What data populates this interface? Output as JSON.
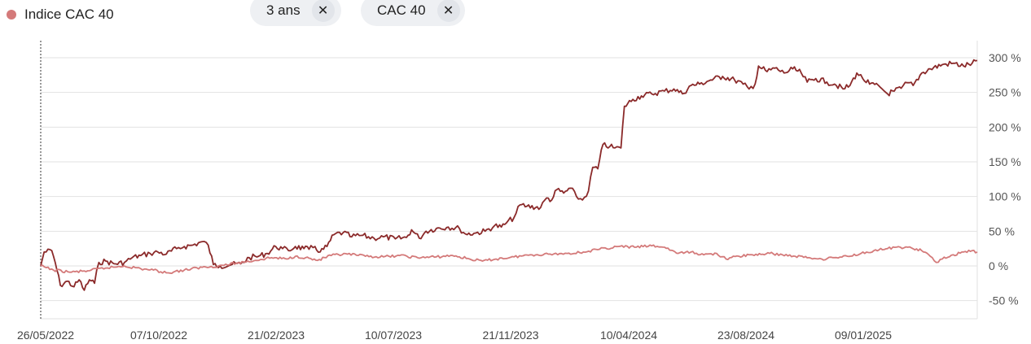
{
  "legend": {
    "label": "Indice CAC 40",
    "color": "#d47a7a"
  },
  "chips": [
    {
      "label": "3 ans",
      "close": "✕"
    },
    {
      "label": "CAC 40",
      "close": "✕"
    }
  ],
  "chart_data": {
    "type": "line",
    "x_tick_labels": [
      "26/05/2022",
      "07/10/2022",
      "21/02/2023",
      "10/07/2023",
      "21/11/2023",
      "10/04/2024",
      "23/08/2024",
      "09/01/2025"
    ],
    "y_tick_labels": [
      "300 %",
      "250 %",
      "200 %",
      "150 %",
      "100 %",
      "50 %",
      "0 %",
      "-50 %"
    ],
    "y_ticks": [
      300,
      250,
      200,
      150,
      100,
      50,
      0,
      -50
    ],
    "ylim": [
      -75,
      315
    ],
    "xlim": [
      "2022-05-26",
      "2025-05-26"
    ],
    "grid": true,
    "legend_position": "top-left",
    "series": [
      {
        "color": "#8b2a2a",
        "points": [
          [
            "2022-05-26",
            0
          ],
          [
            "2022-05-30",
            20
          ],
          [
            "2022-06-08",
            22
          ],
          [
            "2022-06-12",
            5
          ],
          [
            "2022-06-18",
            -28
          ],
          [
            "2022-06-26",
            -22
          ],
          [
            "2022-07-04",
            -30
          ],
          [
            "2022-07-10",
            -20
          ],
          [
            "2022-07-16",
            -35
          ],
          [
            "2022-07-22",
            -20
          ],
          [
            "2022-07-28",
            -25
          ],
          [
            "2022-08-02",
            5
          ],
          [
            "2022-08-10",
            7
          ],
          [
            "2022-08-20",
            3
          ],
          [
            "2022-09-01",
            5
          ],
          [
            "2022-09-10",
            12
          ],
          [
            "2022-09-20",
            15
          ],
          [
            "2022-10-01",
            18
          ],
          [
            "2022-10-10",
            20
          ],
          [
            "2022-10-20",
            17
          ],
          [
            "2022-11-01",
            25
          ],
          [
            "2022-11-10",
            28
          ],
          [
            "2022-11-20",
            30
          ],
          [
            "2022-12-01",
            35
          ],
          [
            "2022-12-08",
            30
          ],
          [
            "2022-12-14",
            2
          ],
          [
            "2022-12-22",
            0
          ],
          [
            "2023-01-05",
            2
          ],
          [
            "2023-01-15",
            3
          ],
          [
            "2023-01-25",
            12
          ],
          [
            "2023-02-05",
            14
          ],
          [
            "2023-02-15",
            18
          ],
          [
            "2023-02-25",
            28
          ],
          [
            "2023-03-05",
            25
          ],
          [
            "2023-03-12",
            22
          ],
          [
            "2023-03-20",
            28
          ],
          [
            "2023-03-30",
            25
          ],
          [
            "2023-04-05",
            24
          ],
          [
            "2023-04-12",
            28
          ],
          [
            "2023-04-18",
            20
          ],
          [
            "2023-04-26",
            28
          ],
          [
            "2023-05-04",
            45
          ],
          [
            "2023-05-15",
            48
          ],
          [
            "2023-05-25",
            42
          ],
          [
            "2023-06-05",
            44
          ],
          [
            "2023-06-20",
            40
          ],
          [
            "2023-07-01",
            42
          ],
          [
            "2023-07-15",
            39
          ],
          [
            "2023-07-28",
            41
          ],
          [
            "2023-08-03",
            52
          ],
          [
            "2023-08-12",
            40
          ],
          [
            "2023-08-20",
            50
          ],
          [
            "2023-09-01",
            54
          ],
          [
            "2023-09-15",
            56
          ],
          [
            "2023-09-28",
            54
          ],
          [
            "2023-10-05",
            46
          ],
          [
            "2023-10-15",
            47
          ],
          [
            "2023-10-28",
            50
          ],
          [
            "2023-11-08",
            58
          ],
          [
            "2023-11-16",
            56
          ],
          [
            "2023-11-22",
            62
          ],
          [
            "2023-12-01",
            70
          ],
          [
            "2023-12-08",
            88
          ],
          [
            "2023-12-16",
            86
          ],
          [
            "2024-01-01",
            84
          ],
          [
            "2024-01-08",
            98
          ],
          [
            "2024-01-14",
            95
          ],
          [
            "2024-01-20",
            110
          ],
          [
            "2024-01-28",
            105
          ],
          [
            "2024-02-05",
            112
          ],
          [
            "2024-02-12",
            100
          ],
          [
            "2024-02-19",
            95
          ],
          [
            "2024-02-26",
            108
          ],
          [
            "2024-03-02",
            142
          ],
          [
            "2024-03-08",
            140
          ],
          [
            "2024-03-14",
            175
          ],
          [
            "2024-03-22",
            172
          ],
          [
            "2024-03-28",
            170
          ],
          [
            "2024-04-04",
            170
          ],
          [
            "2024-04-08",
            230
          ],
          [
            "2024-04-18",
            240
          ],
          [
            "2024-04-28",
            245
          ],
          [
            "2024-05-10",
            248
          ],
          [
            "2024-05-25",
            252
          ],
          [
            "2024-06-05",
            255
          ],
          [
            "2024-06-15",
            248
          ],
          [
            "2024-06-25",
            260
          ],
          [
            "2024-07-05",
            262
          ],
          [
            "2024-07-18",
            268
          ],
          [
            "2024-08-01",
            273
          ],
          [
            "2024-08-15",
            268
          ],
          [
            "2024-08-25",
            262
          ],
          [
            "2024-09-01",
            255
          ],
          [
            "2024-09-08",
            262
          ],
          [
            "2024-09-12",
            288
          ],
          [
            "2024-09-22",
            280
          ],
          [
            "2024-10-01",
            285
          ],
          [
            "2024-10-12",
            278
          ],
          [
            "2024-10-22",
            284
          ],
          [
            "2024-11-01",
            278
          ],
          [
            "2024-11-08",
            265
          ],
          [
            "2024-11-18",
            270
          ],
          [
            "2024-12-01",
            265
          ],
          [
            "2024-12-10",
            262
          ],
          [
            "2024-12-20",
            255
          ],
          [
            "2024-12-28",
            260
          ],
          [
            "2025-01-05",
            278
          ],
          [
            "2025-01-12",
            270
          ],
          [
            "2025-01-20",
            262
          ],
          [
            "2025-02-01",
            258
          ],
          [
            "2025-02-10",
            248
          ],
          [
            "2025-02-18",
            252
          ],
          [
            "2025-02-26",
            256
          ],
          [
            "2025-03-05",
            264
          ],
          [
            "2025-03-12",
            260
          ],
          [
            "2025-03-22",
            278
          ],
          [
            "2025-04-01",
            284
          ],
          [
            "2025-04-15",
            290
          ],
          [
            "2025-04-28",
            292
          ],
          [
            "2025-05-10",
            288
          ],
          [
            "2025-05-20",
            292
          ],
          [
            "2025-05-26",
            296
          ]
        ]
      },
      {
        "color": "#d47a7a",
        "points": [
          [
            "2022-05-26",
            0
          ],
          [
            "2022-06-10",
            -6
          ],
          [
            "2022-07-01",
            -9
          ],
          [
            "2022-07-20",
            -7
          ],
          [
            "2022-08-10",
            -3
          ],
          [
            "2022-09-01",
            0
          ],
          [
            "2022-09-20",
            -4
          ],
          [
            "2022-10-05",
            -6
          ],
          [
            "2022-10-20",
            -10
          ],
          [
            "2022-11-10",
            -6
          ],
          [
            "2022-12-01",
            -2
          ],
          [
            "2022-12-20",
            0
          ],
          [
            "2023-01-10",
            4
          ],
          [
            "2023-02-01",
            8
          ],
          [
            "2023-02-20",
            12
          ],
          [
            "2023-03-10",
            10
          ],
          [
            "2023-03-20",
            14
          ],
          [
            "2023-04-01",
            12
          ],
          [
            "2023-04-15",
            8
          ],
          [
            "2023-05-01",
            15
          ],
          [
            "2023-05-20",
            17
          ],
          [
            "2023-06-10",
            14
          ],
          [
            "2023-07-01",
            13
          ],
          [
            "2023-07-20",
            15
          ],
          [
            "2023-08-10",
            12
          ],
          [
            "2023-09-01",
            13
          ],
          [
            "2023-09-20",
            15
          ],
          [
            "2023-10-10",
            10
          ],
          [
            "2023-10-25",
            7
          ],
          [
            "2023-11-10",
            10
          ],
          [
            "2023-12-01",
            13
          ],
          [
            "2023-12-20",
            16
          ],
          [
            "2024-01-10",
            17
          ],
          [
            "2024-02-01",
            18
          ],
          [
            "2024-02-20",
            20
          ],
          [
            "2024-03-10",
            24
          ],
          [
            "2024-04-01",
            28
          ],
          [
            "2024-04-20",
            27
          ],
          [
            "2024-05-10",
            29
          ],
          [
            "2024-05-25",
            27
          ],
          [
            "2024-06-10",
            18
          ],
          [
            "2024-06-25",
            20
          ],
          [
            "2024-07-10",
            16
          ],
          [
            "2024-07-25",
            18
          ],
          [
            "2024-08-05",
            10
          ],
          [
            "2024-08-20",
            14
          ],
          [
            "2024-09-05",
            16
          ],
          [
            "2024-09-25",
            18
          ],
          [
            "2024-10-10",
            16
          ],
          [
            "2024-10-25",
            14
          ],
          [
            "2024-11-10",
            12
          ],
          [
            "2024-11-25",
            10
          ],
          [
            "2024-12-10",
            12
          ],
          [
            "2024-12-25",
            14
          ],
          [
            "2025-01-10",
            18
          ],
          [
            "2025-01-25",
            22
          ],
          [
            "2025-02-10",
            25
          ],
          [
            "2025-02-25",
            27
          ],
          [
            "2025-03-10",
            26
          ],
          [
            "2025-03-22",
            22
          ],
          [
            "2025-04-01",
            14
          ],
          [
            "2025-04-08",
            5
          ],
          [
            "2025-04-15",
            10
          ],
          [
            "2025-04-28",
            16
          ],
          [
            "2025-05-10",
            20
          ],
          [
            "2025-05-20",
            22
          ],
          [
            "2025-05-26",
            20
          ]
        ]
      }
    ]
  }
}
